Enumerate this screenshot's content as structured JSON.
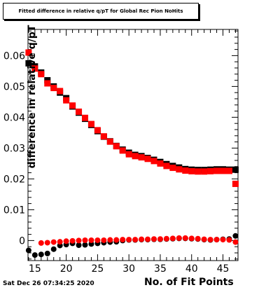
{
  "chart_data": {
    "type": "scatter",
    "title": "Fitted difference in relative q/pT for Global Rec Pion NoHits",
    "xlabel": "No. of Fit Points",
    "ylabel": "difference in relative q/pT",
    "xlim": [
      13.9,
      47.4
    ],
    "ylim": [
      -0.0065,
      0.0685
    ],
    "x_ticks": [
      15,
      20,
      25,
      30,
      35,
      40,
      45
    ],
    "x_tick_labels": [
      "15",
      "20",
      "25",
      "30",
      "35",
      "40",
      "45"
    ],
    "y_ticks": [
      0,
      0.01,
      0.02,
      0.03,
      0.04,
      0.05,
      0.06
    ],
    "y_tick_labels": [
      "0",
      "0.01",
      "0.02",
      "0.03",
      "0.04",
      "0.05",
      "0.06"
    ],
    "grid": false,
    "x": [
      14,
      15,
      16,
      17,
      18,
      19,
      20,
      21,
      22,
      23,
      24,
      25,
      26,
      27,
      28,
      29,
      30,
      31,
      32,
      33,
      34,
      35,
      36,
      37,
      38,
      39,
      40,
      41,
      42,
      43,
      44,
      45,
      46,
      47
    ],
    "series": [
      {
        "marker": "square",
        "color": "#000000",
        "values": [
          0.0575,
          0.0565,
          0.0545,
          0.052,
          0.05,
          0.048,
          0.0462,
          0.0435,
          0.0415,
          0.0395,
          0.0375,
          0.0355,
          0.0337,
          0.0322,
          0.0307,
          0.0295,
          0.0285,
          0.0278,
          0.0274,
          0.0268,
          0.0262,
          0.0255,
          0.0248,
          0.0242,
          0.0237,
          0.0232,
          0.023,
          0.0229,
          0.0229,
          0.023,
          0.0231,
          0.0231,
          0.023,
          0.023
        ]
      },
      {
        "marker": "square",
        "color": "#ff0000",
        "values": [
          0.061,
          0.0558,
          0.054,
          0.051,
          0.0495,
          0.0485,
          0.0455,
          0.0438,
          0.0418,
          0.0398,
          0.0378,
          0.0358,
          0.0338,
          0.0321,
          0.0306,
          0.0292,
          0.028,
          0.0274,
          0.027,
          0.0265,
          0.0258,
          0.025,
          0.0242,
          0.0236,
          0.0231,
          0.0227,
          0.0225,
          0.0224,
          0.0224,
          0.0225,
          0.0226,
          0.0226,
          0.0226,
          0.0184
        ]
      },
      {
        "marker": "circle",
        "color": "#000000",
        "values": [
          -0.0032,
          -0.0047,
          -0.0045,
          -0.0042,
          -0.0028,
          -0.0016,
          -0.0013,
          -0.0009,
          -0.0015,
          -0.0014,
          -0.0011,
          -0.0009,
          -0.0007,
          -0.0005,
          -0.0004,
          0.0,
          0.0002,
          0.0002,
          0.0003,
          0.0003,
          0.0004,
          0.0004,
          0.0005,
          0.0006,
          0.0007,
          0.0007,
          0.0006,
          0.0005,
          0.0003,
          0.0002,
          0.0003,
          0.0004,
          0.0005,
          0.0015
        ]
      },
      {
        "marker": "circle",
        "color": "#ff0000",
        "values": [
          null,
          null,
          -0.0008,
          -0.0007,
          -0.0005,
          -0.0004,
          -0.0002,
          -0.0001,
          0.0,
          0.0001,
          0.0001,
          0.0001,
          0.0001,
          0.0002,
          0.0002,
          0.0003,
          0.0003,
          0.0003,
          0.0004,
          0.0004,
          0.0005,
          0.0005,
          0.0006,
          0.0007,
          0.0008,
          0.0008,
          0.0007,
          0.0006,
          0.0004,
          0.0003,
          0.0003,
          0.0003,
          0.0002,
          -0.0005
        ]
      }
    ]
  },
  "footer": {
    "timestamp": "Sat Dec 26 07:34:25 2020"
  }
}
